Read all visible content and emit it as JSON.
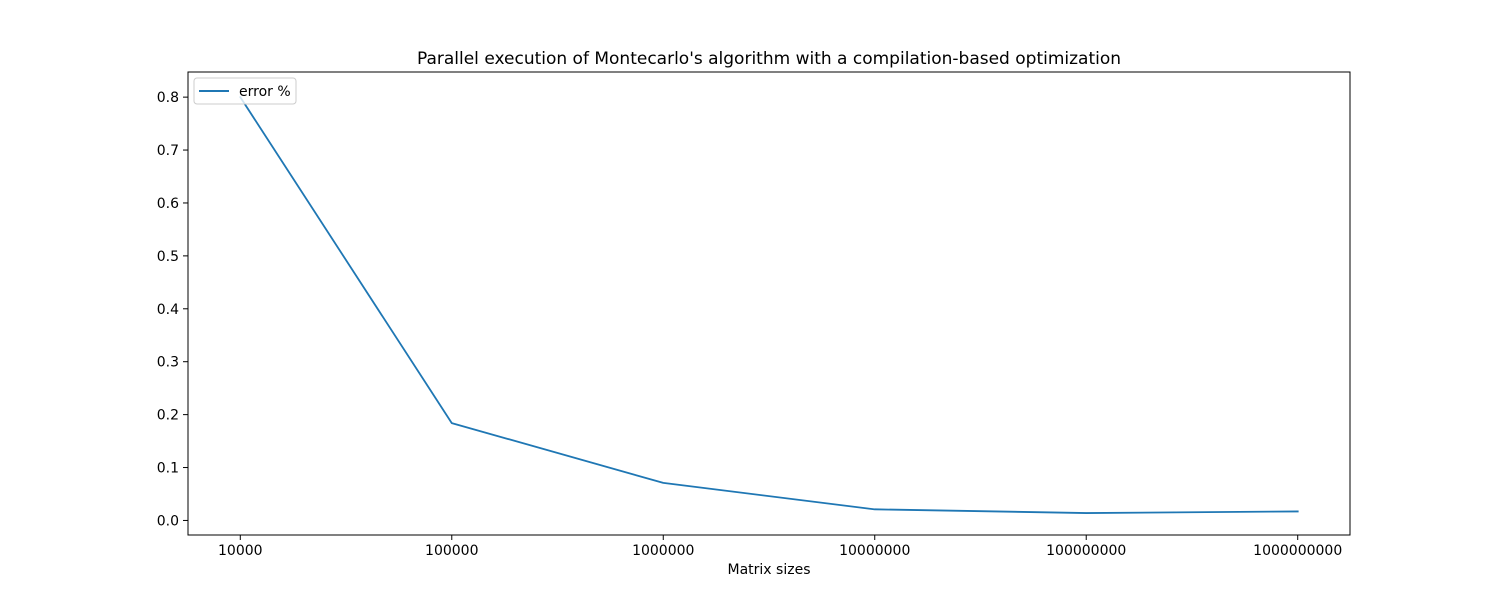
{
  "chart_data": {
    "type": "line",
    "title": "Parallel execution of Montecarlo's algorithm with a compilation-based optimization",
    "xlabel": "Matrix sizes",
    "ylabel": "",
    "categories": [
      "10000",
      "100000",
      "1000000",
      "10000000",
      "100000000",
      "1000000000"
    ],
    "series": [
      {
        "name": "error %",
        "values": [
          0.8,
          0.184,
          0.071,
          0.021,
          0.014,
          0.017
        ],
        "color": "#1f77b4"
      }
    ],
    "ylim": [
      -0.0275,
      0.8475
    ],
    "yticks": [
      "0.0",
      "0.1",
      "0.2",
      "0.3",
      "0.4",
      "0.5",
      "0.6",
      "0.7",
      "0.8"
    ],
    "grid": false,
    "legend_position": "top-left"
  }
}
